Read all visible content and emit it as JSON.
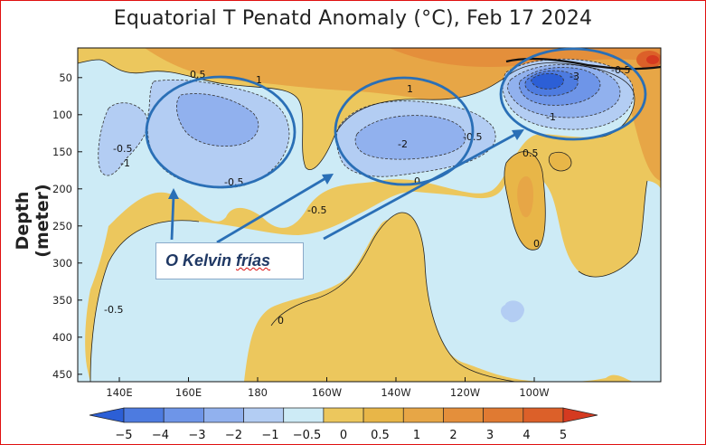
{
  "chart_data": {
    "type": "heatmap",
    "title": "Equatorial T Penatd Anomaly (°C), Feb 17 2024",
    "ylabel": "Depth (meter)",
    "xlabel": "",
    "x_ticks": [
      "140E",
      "160E",
      "180",
      "160W",
      "140W",
      "120W",
      "100W"
    ],
    "y_ticks": [
      "50",
      "100",
      "150",
      "200",
      "250",
      "300",
      "350",
      "400",
      "450"
    ],
    "ylim": [
      460,
      10
    ],
    "contour_labels": [
      "-0.5",
      "-1",
      "-2",
      "0",
      "0.5",
      "1",
      "-3",
      "-0.5",
      "0.5"
    ],
    "colorbar": {
      "levels": [
        "-5",
        "-4",
        "-3",
        "-2",
        "-1",
        "-0.5",
        "0",
        "0.5",
        "1",
        "2",
        "3",
        "4",
        "5"
      ],
      "colors": [
        "#2c5fd6",
        "#4d7be0",
        "#6e95e8",
        "#91b1ee",
        "#b3cdf3",
        "#cdebf6",
        "#ecc75d",
        "#e8b648",
        "#e7a646",
        "#e48f3b",
        "#e07a32",
        "#dc6029",
        "#d53a20"
      ]
    }
  },
  "annotation": {
    "callout_label": "O Kelvin frías",
    "callout_word1": "O Kelvin ",
    "callout_word2": "frías",
    "ellipse_color": "#2a6fb6"
  }
}
